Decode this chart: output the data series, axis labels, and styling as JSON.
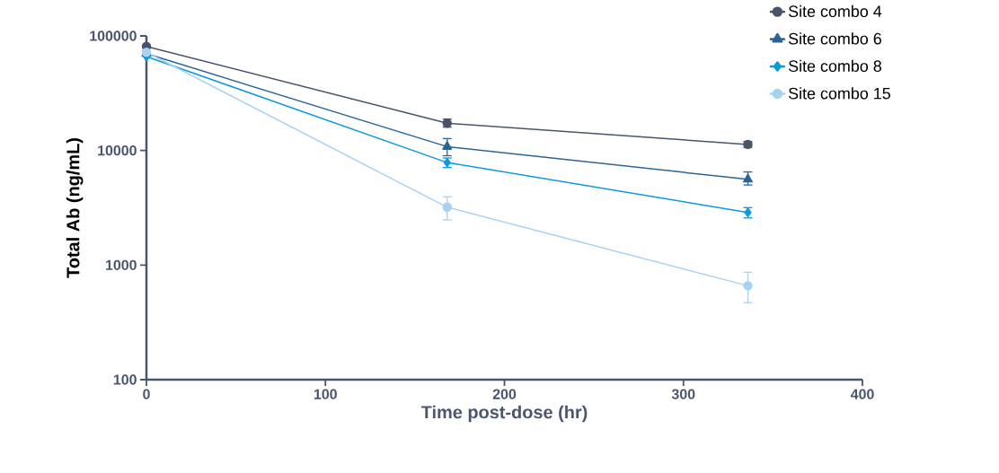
{
  "chart_data": {
    "type": "line",
    "xlabel": "Time post-dose (hr)",
    "ylabel": "Total Ab (ng/mL)",
    "log": "y",
    "xlim": [
      0,
      400
    ],
    "ylim": [
      100,
      100000
    ],
    "xticks": [
      0,
      100,
      200,
      300,
      400
    ],
    "yticks": [
      100,
      1000,
      10000,
      100000
    ],
    "legend": "top right",
    "grid": false,
    "line_style": "solid",
    "series": [
      {
        "name": "Site combo 4",
        "color": "#475469",
        "marker": "circle",
        "x": [
          0,
          168,
          336
        ],
        "values": [
          81000,
          17300,
          11300
        ],
        "errors": [
          null,
          [
            16000,
            18800
          ],
          [
            10600,
            12000
          ]
        ]
      },
      {
        "name": "Site combo 6",
        "color": "#2a6496",
        "marker": "triangle",
        "x": [
          0,
          168,
          336
        ],
        "values": [
          70000,
          10800,
          5600
        ],
        "errors": [
          null,
          [
            9000,
            12700
          ],
          [
            5000,
            6500
          ]
        ]
      },
      {
        "name": "Site combo 8",
        "color": "#0a9ae0",
        "marker": "diamond",
        "x": [
          0,
          168,
          336
        ],
        "values": [
          66000,
          7850,
          2880
        ],
        "errors": [
          null,
          [
            7100,
            8600
          ],
          [
            2580,
            3170
          ]
        ]
      },
      {
        "name": "Site combo 15",
        "color": "#a9d1f0",
        "marker": "circle",
        "x": [
          0,
          168,
          336
        ],
        "values": [
          72000,
          3200,
          660
        ],
        "errors": [
          null,
          [
            2480,
            3940
          ],
          [
            470,
            866
          ]
        ]
      }
    ]
  }
}
